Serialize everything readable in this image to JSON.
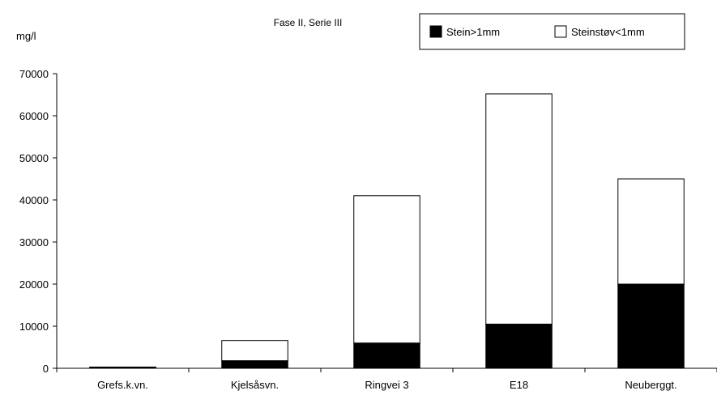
{
  "chart_data": {
    "type": "bar",
    "stacked": true,
    "title": "Fase II, Serie III",
    "ylabel": "mg/l",
    "xlabel": "",
    "ylim": [
      0,
      70000
    ],
    "yticks": [
      0,
      10000,
      20000,
      30000,
      40000,
      50000,
      60000,
      70000
    ],
    "ytick_labels": [
      "0",
      "10000",
      "20000",
      "30000",
      "40000",
      "50000",
      "60000",
      "70000"
    ],
    "categories": [
      "Grefs.k.vn.",
      "Kjelsåsvn.",
      "Ringvei 3",
      "E18",
      "Neuberggt."
    ],
    "series": [
      {
        "name": "Stein>1mm",
        "color": "#000000",
        "values": [
          250,
          1800,
          6000,
          10500,
          20000
        ]
      },
      {
        "name": "Steinstøv<1mm",
        "color": "#ffffff",
        "values": [
          50,
          4800,
          35000,
          54700,
          25000
        ]
      }
    ],
    "grid": false,
    "legend_position": "top-right"
  }
}
